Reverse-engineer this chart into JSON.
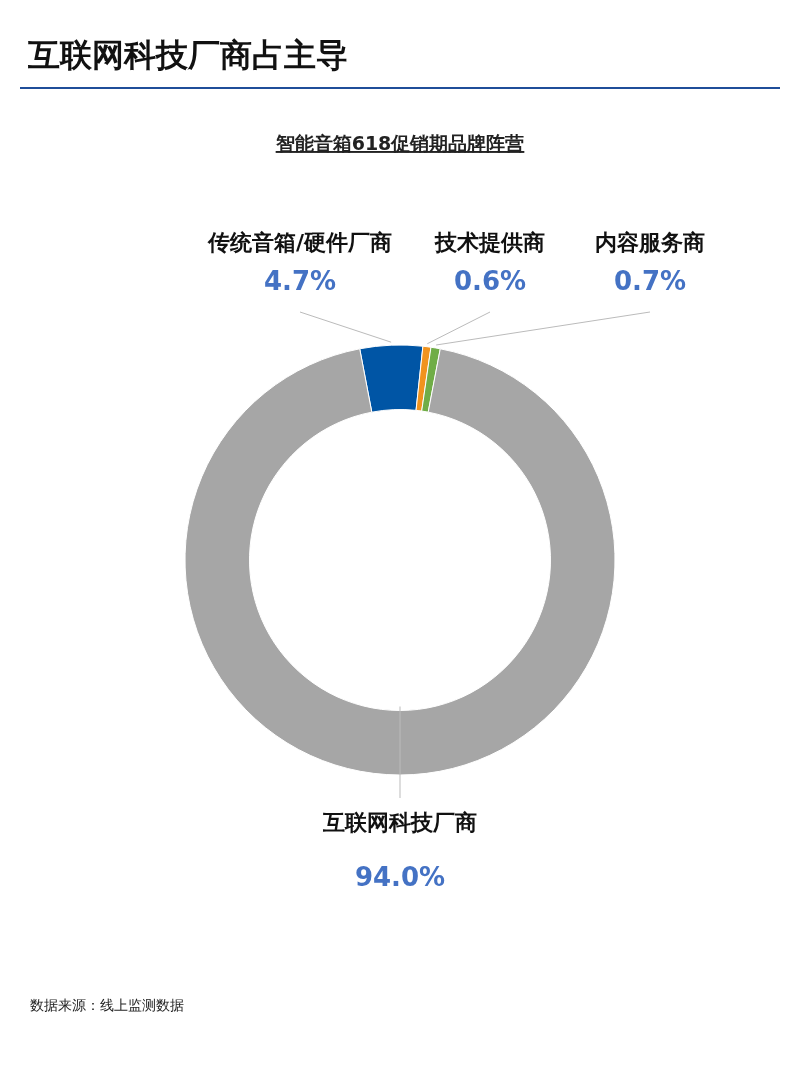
{
  "chart_data": {
    "type": "donut",
    "title": "互联网科技厂商占主导",
    "subtitle": "智能音箱618促销期品牌阵营",
    "categories": [
      "传统音箱/硬件厂商",
      "技术提供商",
      "内容服务商",
      "互联网科技厂商"
    ],
    "values": [
      4.7,
      0.6,
      0.7,
      94.0
    ],
    "colors": [
      "#0055a5",
      "#f0931e",
      "#70ad47",
      "#a6a6a6"
    ],
    "value_labels": [
      "4.7%",
      "0.6%",
      "0.7%",
      "94.0%"
    ],
    "annotations": [
      "数据来源：线上监测数据"
    ]
  }
}
